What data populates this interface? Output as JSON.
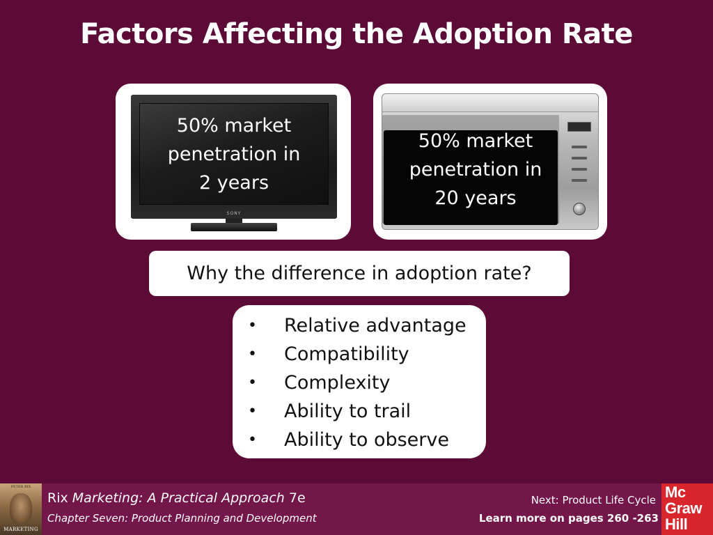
{
  "slide": {
    "title": "Factors Affecting the Adoption Rate"
  },
  "tv": {
    "caption_line1": "50% market",
    "caption_line2": "penetration in",
    "caption_line3": "2 years",
    "brand": "SONY"
  },
  "microwave": {
    "caption_line1": "50% market",
    "caption_line2": "penetration in",
    "caption_line3": "20 years"
  },
  "question": "Why the difference in adoption rate?",
  "factors": {
    "bullet": "•",
    "items": [
      "Relative advantage",
      "Compatibility",
      "Complexity",
      "Ability to trail",
      "Ability to observe"
    ]
  },
  "footer": {
    "book_cover": {
      "author": "PETER RIX",
      "title": "MARKETING"
    },
    "author": "Rix",
    "book_title": "Marketing: A Practical Approach",
    "edition": "7e",
    "chapter": "Chapter Seven: Product Planning and Development",
    "next": "Next: Product Life Cycle",
    "learn_more": "Learn more on pages 260 -263",
    "publisher_logo": [
      "Mc",
      "Graw",
      "Hill"
    ]
  },
  "colors": {
    "background": "#5c0b36",
    "footer": "#73164a",
    "logo_red": "#d9262c"
  }
}
